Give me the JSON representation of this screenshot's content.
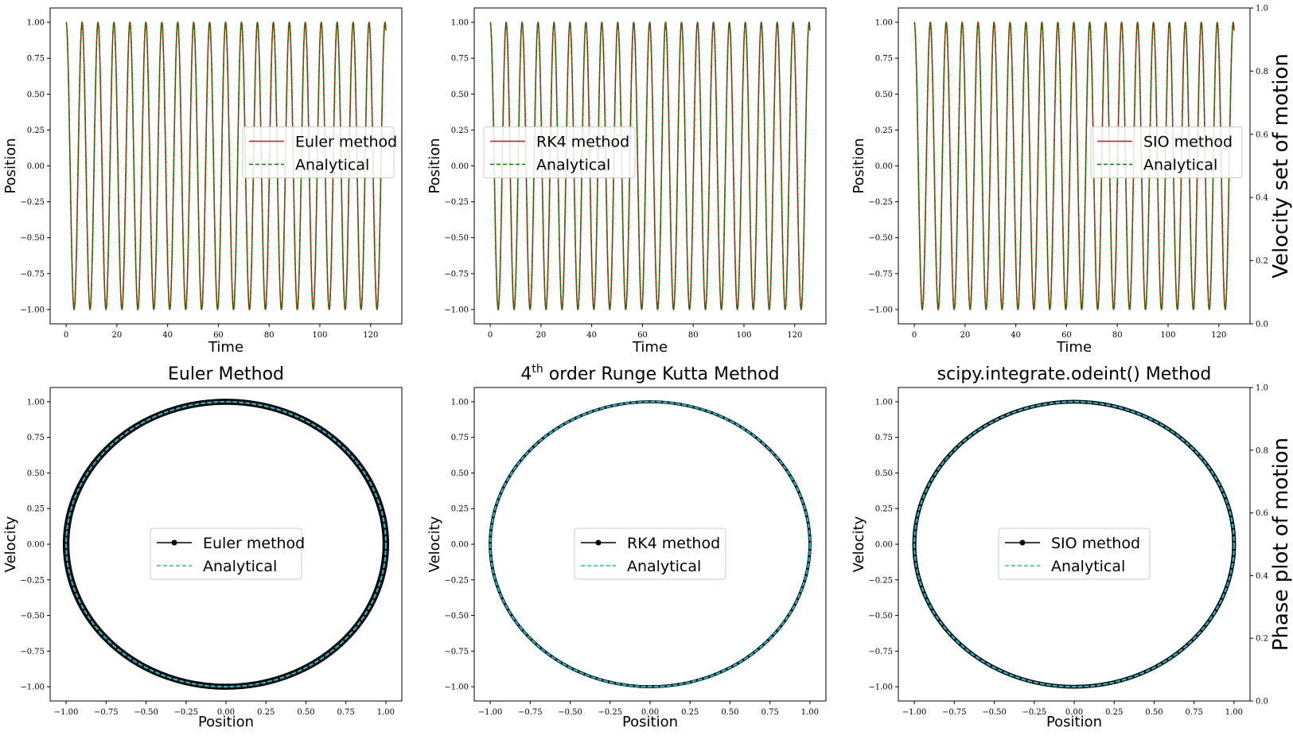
{
  "colors": {
    "numeric": "#ff0000",
    "analytical_time": "#008000",
    "phase_numeric": "#000000",
    "analytical_phase": "#17becf"
  },
  "side_labels": {
    "top": "Velocity set of motion",
    "bottom": "Phase plot of motion"
  },
  "right_axis": {
    "ticks": [
      "0.0",
      "0.2",
      "0.4",
      "0.6",
      "0.8",
      "1.0"
    ]
  },
  "chart_data": [
    {
      "type": "line",
      "panel": "time-euler",
      "title": "",
      "xlabel": "Time",
      "ylabel": "Position",
      "xlim": [
        -6.3,
        132.3
      ],
      "ylim": [
        -1.1,
        1.1
      ],
      "xticks": [
        0,
        20,
        40,
        60,
        80,
        100,
        120
      ],
      "yticks": [
        -1.0,
        -0.75,
        -0.5,
        -0.25,
        0.0,
        0.25,
        0.5,
        0.75,
        1.0
      ],
      "function": "cos",
      "t_range": [
        0,
        126
      ],
      "legend_placement": "center-right",
      "series": [
        {
          "name": "Euler method",
          "style": "solid",
          "color": "#ff0000"
        },
        {
          "name": "Analytical",
          "style": "dashed",
          "color": "#008000"
        }
      ]
    },
    {
      "type": "line",
      "panel": "time-rk4",
      "title": "",
      "xlabel": "Time",
      "ylabel": "Position",
      "xlim": [
        -6.3,
        132.3
      ],
      "ylim": [
        -1.1,
        1.1
      ],
      "xticks": [
        0,
        20,
        40,
        60,
        80,
        100,
        120
      ],
      "yticks": [
        -1.0,
        -0.75,
        -0.5,
        -0.25,
        0.0,
        0.25,
        0.5,
        0.75,
        1.0
      ],
      "function": "cos",
      "t_range": [
        0,
        126
      ],
      "legend_placement": "center-left",
      "series": [
        {
          "name": "RK4 method",
          "style": "solid",
          "color": "#ff0000"
        },
        {
          "name": "Analytical",
          "style": "dashed",
          "color": "#008000"
        }
      ]
    },
    {
      "type": "line",
      "panel": "time-sio",
      "title": "",
      "xlabel": "Time",
      "ylabel": "Position",
      "xlim": [
        -6.3,
        132.3
      ],
      "ylim": [
        -1.1,
        1.1
      ],
      "xticks": [
        0,
        20,
        40,
        60,
        80,
        100,
        120
      ],
      "yticks": [
        -1.0,
        -0.75,
        -0.5,
        -0.25,
        0.0,
        0.25,
        0.5,
        0.75,
        1.0
      ],
      "function": "cos",
      "t_range": [
        0,
        126
      ],
      "legend_placement": "center-right",
      "series": [
        {
          "name": "SIO method",
          "style": "solid",
          "color": "#ff0000"
        },
        {
          "name": "Analytical",
          "style": "dashed",
          "color": "#008000"
        }
      ]
    },
    {
      "type": "line",
      "panel": "phase-euler",
      "title": "Euler Method",
      "xlabel": "Position",
      "ylabel": "Velocity",
      "xlim": [
        -1.1,
        1.1
      ],
      "ylim": [
        -1.1,
        1.1
      ],
      "xticks": [
        -1.0,
        -0.75,
        -0.5,
        -0.25,
        0.0,
        0.25,
        0.5,
        0.75,
        1.0
      ],
      "yticks": [
        -1.0,
        -0.75,
        -0.5,
        -0.25,
        0.0,
        0.25,
        0.5,
        0.75,
        1.0
      ],
      "radius_range": [
        0.985,
        1.015
      ],
      "legend_placement": "center",
      "series": [
        {
          "name": "Euler method",
          "style": "solid-marker",
          "color": "#000000"
        },
        {
          "name": "Analytical",
          "style": "dashed",
          "color": "#17becf"
        }
      ]
    },
    {
      "type": "line",
      "panel": "phase-rk4",
      "title": "4th order Runge Kutta Method",
      "title_main": "4",
      "title_sup": "th",
      "title_rest": " order Runge Kutta Method",
      "xlabel": "Position",
      "ylabel": "Velocity",
      "xlim": [
        -1.1,
        1.1
      ],
      "ylim": [
        -1.1,
        1.1
      ],
      "xticks": [
        -1.0,
        -0.75,
        -0.5,
        -0.25,
        0.0,
        0.25,
        0.5,
        0.75,
        1.0
      ],
      "yticks": [
        -1.0,
        -0.75,
        -0.5,
        -0.25,
        0.0,
        0.25,
        0.5,
        0.75,
        1.0
      ],
      "radius_range": [
        0.996,
        1.004
      ],
      "legend_placement": "center",
      "series": [
        {
          "name": "RK4 method",
          "style": "solid-marker",
          "color": "#000000"
        },
        {
          "name": "Analytical",
          "style": "dashed",
          "color": "#17becf"
        }
      ]
    },
    {
      "type": "line",
      "panel": "phase-sio",
      "title": "scipy.integrate.odeint() Method",
      "xlabel": "Position",
      "ylabel": "Velocity",
      "xlim": [
        -1.1,
        1.1
      ],
      "ylim": [
        -1.1,
        1.1
      ],
      "xticks": [
        -1.0,
        -0.75,
        -0.5,
        -0.25,
        0.0,
        0.25,
        0.5,
        0.75,
        1.0
      ],
      "yticks": [
        -1.0,
        -0.75,
        -0.5,
        -0.25,
        0.0,
        0.25,
        0.5,
        0.75,
        1.0
      ],
      "radius_range": [
        0.993,
        1.007
      ],
      "legend_placement": "center",
      "series": [
        {
          "name": "SIO method",
          "style": "solid-marker",
          "color": "#000000"
        },
        {
          "name": "Analytical",
          "style": "dashed",
          "color": "#17becf"
        }
      ]
    }
  ]
}
